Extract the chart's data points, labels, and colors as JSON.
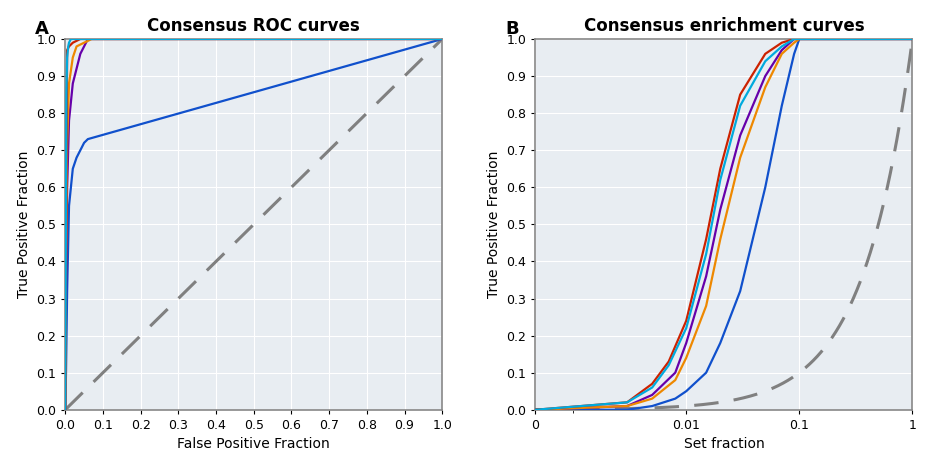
{
  "title_A": "Consensus ROC curves",
  "title_B": "Consensus enrichment curves",
  "xlabel_A": "False Positive Fraction",
  "ylabel_A": "True Positive Fraction",
  "xlabel_B": "Set fraction",
  "ylabel_B": "True Positive Fraction",
  "label_A": "A",
  "label_B": "B",
  "curve_colors": {
    "blue": "#1050cc",
    "red": "#cc2200",
    "purple": "#6600aa",
    "orange": "#ee8800",
    "cyan": "#00aadd"
  },
  "random_color": "#808080",
  "bg_color": "#e8edf2",
  "grid_color": "#ffffff",
  "spine_color": "#888888",
  "line_width": 1.6,
  "random_lw": 2.2,
  "title_fontsize": 12,
  "label_fontsize": 13,
  "tick_fontsize": 9,
  "axis_label_fontsize": 10,
  "roc": {
    "cyan": {
      "fpr": [
        0,
        0.003,
        0.005,
        0.008,
        0.01,
        0.015,
        0.02,
        1.0
      ],
      "tpr": [
        0,
        0.85,
        0.95,
        0.98,
        0.99,
        1.0,
        1.0,
        1.0
      ]
    },
    "red": {
      "fpr": [
        0,
        0.005,
        0.01,
        0.02,
        0.04,
        0.06,
        1.0
      ],
      "tpr": [
        0,
        0.97,
        0.98,
        0.99,
        1.0,
        1.0,
        1.0
      ]
    },
    "orange": {
      "fpr": [
        0,
        0.002,
        0.005,
        0.01,
        0.02,
        0.03,
        0.05,
        0.07,
        1.0
      ],
      "tpr": [
        0,
        0.4,
        0.72,
        0.88,
        0.95,
        0.98,
        0.99,
        1.0,
        1.0
      ]
    },
    "purple": {
      "fpr": [
        0,
        0.002,
        0.005,
        0.01,
        0.02,
        0.03,
        0.04,
        0.06,
        1.0
      ],
      "tpr": [
        0,
        0.32,
        0.6,
        0.78,
        0.88,
        0.92,
        0.96,
        1.0,
        1.0
      ]
    },
    "blue": {
      "fpr": [
        0,
        0.002,
        0.005,
        0.01,
        0.02,
        0.03,
        0.04,
        0.05,
        0.06,
        1.0
      ],
      "tpr": [
        0,
        0.1,
        0.32,
        0.55,
        0.65,
        0.68,
        0.7,
        0.72,
        0.73,
        1.0
      ]
    }
  },
  "enrich": {
    "cyan": {
      "x": [
        0,
        0.003,
        0.005,
        0.007,
        0.01,
        0.015,
        0.02,
        0.03,
        0.05,
        0.07,
        0.09,
        0.1,
        1.0
      ],
      "y": [
        0,
        0.02,
        0.06,
        0.12,
        0.22,
        0.42,
        0.62,
        0.82,
        0.94,
        0.98,
        1.0,
        1.0,
        1.0
      ]
    },
    "red": {
      "x": [
        0,
        0.003,
        0.005,
        0.007,
        0.01,
        0.015,
        0.02,
        0.03,
        0.05,
        0.07,
        0.09,
        0.1,
        1.0
      ],
      "y": [
        0,
        0.02,
        0.07,
        0.13,
        0.24,
        0.46,
        0.65,
        0.85,
        0.96,
        0.99,
        1.0,
        1.0,
        1.0
      ]
    },
    "orange": {
      "x": [
        0,
        0.003,
        0.005,
        0.008,
        0.01,
        0.015,
        0.02,
        0.03,
        0.05,
        0.07,
        0.09,
        0.1,
        1.0
      ],
      "y": [
        0,
        0.01,
        0.03,
        0.08,
        0.14,
        0.28,
        0.46,
        0.68,
        0.87,
        0.96,
        0.99,
        1.0,
        1.0
      ]
    },
    "purple": {
      "x": [
        0,
        0.003,
        0.005,
        0.008,
        0.01,
        0.015,
        0.02,
        0.03,
        0.05,
        0.07,
        0.09,
        0.1,
        1.0
      ],
      "y": [
        0,
        0.01,
        0.04,
        0.1,
        0.18,
        0.36,
        0.54,
        0.74,
        0.9,
        0.97,
        1.0,
        1.0,
        1.0
      ]
    },
    "blue": {
      "x": [
        0,
        0.003,
        0.005,
        0.008,
        0.01,
        0.015,
        0.02,
        0.03,
        0.05,
        0.07,
        0.09,
        0.1,
        1.0
      ],
      "y": [
        0,
        0.0,
        0.01,
        0.03,
        0.05,
        0.1,
        0.18,
        0.32,
        0.6,
        0.82,
        0.96,
        1.0,
        1.0
      ]
    }
  }
}
